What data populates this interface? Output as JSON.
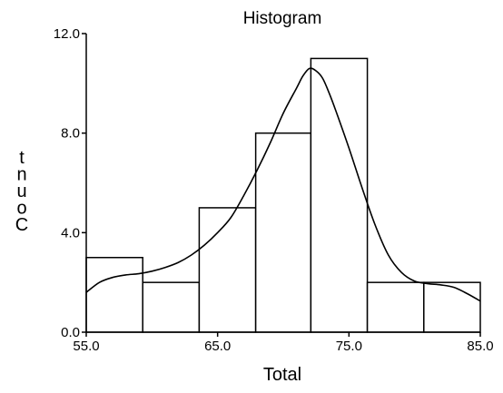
{
  "chart_data": {
    "type": "bar",
    "title": "Histogram",
    "xlabel": "Total",
    "ylabel": "Count",
    "ylabel_glyphs": [
      "t",
      "n",
      "u",
      "o",
      "C"
    ],
    "xlim": [
      55.0,
      85.0
    ],
    "ylim": [
      0.0,
      12.0
    ],
    "bins": [
      {
        "start": 55.0,
        "end": 59.3,
        "count": 3
      },
      {
        "start": 59.3,
        "end": 63.6,
        "count": 2
      },
      {
        "start": 63.6,
        "end": 67.9,
        "count": 5
      },
      {
        "start": 67.9,
        "end": 72.1,
        "count": 8
      },
      {
        "start": 72.1,
        "end": 76.4,
        "count": 11
      },
      {
        "start": 76.4,
        "end": 80.7,
        "count": 2
      },
      {
        "start": 80.7,
        "end": 85.0,
        "count": 2
      }
    ],
    "x_ticks": [
      {
        "value": 55.0,
        "label": "55.0"
      },
      {
        "value": 65.0,
        "label": "65.0"
      },
      {
        "value": 75.0,
        "label": "75.0"
      },
      {
        "value": 85.0,
        "label": "85.0"
      }
    ],
    "y_ticks": [
      {
        "value": 0.0,
        "label": "0.0"
      },
      {
        "value": 4.0,
        "label": "4.0"
      },
      {
        "value": 8.0,
        "label": "8.0"
      },
      {
        "value": 12.0,
        "label": "12.0"
      }
    ],
    "density_curve": {
      "x": [
        55.0,
        56.0,
        57.0,
        58.0,
        59.0,
        60.0,
        61.0,
        62.0,
        63.0,
        64.0,
        65.0,
        66.0,
        67.0,
        68.0,
        69.0,
        70.0,
        71.0,
        71.5,
        72.0,
        72.5,
        73.0,
        73.5,
        74.0,
        75.0,
        76.0,
        77.0,
        78.0,
        79.0,
        80.0,
        81.0,
        82.0,
        83.0,
        84.0,
        85.0
      ],
      "y": [
        1.6,
        2.0,
        2.2,
        2.3,
        2.35,
        2.45,
        2.6,
        2.8,
        3.1,
        3.5,
        4.0,
        4.6,
        5.5,
        6.5,
        7.6,
        8.8,
        9.8,
        10.3,
        10.6,
        10.5,
        10.2,
        9.6,
        8.9,
        7.4,
        5.8,
        4.3,
        3.1,
        2.4,
        2.05,
        1.95,
        1.9,
        1.8,
        1.55,
        1.25
      ]
    },
    "grid": false,
    "legend": "none"
  }
}
